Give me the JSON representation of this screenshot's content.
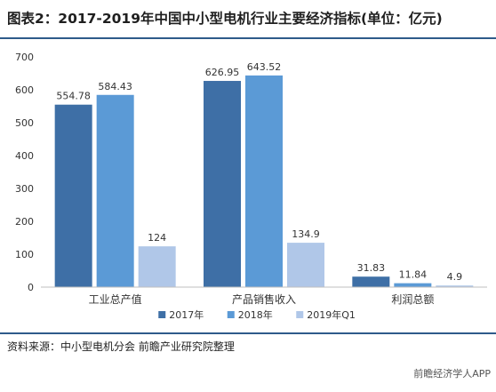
{
  "page": {
    "title": "图表2：2017-2019年中国中小型电机行业主要经济指标(单位：亿元)",
    "source": "资料来源：中小型电机分会 前瞻产业研究院整理",
    "brand": "前瞻经济学人APP",
    "colors": {
      "rule": "#2e5b8a"
    }
  },
  "chart_data": {
    "type": "bar",
    "title": "图表2：2017-2019年中国中小型电机行业主要经济指标(单位：亿元)",
    "categories": [
      "工业总产值",
      "产品销售收入",
      "利润总额"
    ],
    "series": [
      {
        "name": "2017年",
        "values": [
          554.78,
          626.95,
          31.83
        ],
        "labels": [
          "554.78",
          "626.95",
          "31.83"
        ],
        "color": "#3e6fa6"
      },
      {
        "name": "2018年",
        "values": [
          584.43,
          643.52,
          11.84
        ],
        "labels": [
          "584.43",
          "643.52",
          "11.84"
        ],
        "color": "#5b9ad6"
      },
      {
        "name": "2019年Q1",
        "values": [
          124,
          134.9,
          4.9
        ],
        "labels": [
          "124",
          "134.9",
          "4.9"
        ],
        "color": "#b0c7e8"
      }
    ],
    "ylim": [
      0,
      700
    ],
    "yticks": [
      0,
      100,
      200,
      300,
      400,
      500,
      600,
      700
    ],
    "grid": false,
    "legend_position": "bottom",
    "xlabel": "",
    "ylabel": ""
  }
}
